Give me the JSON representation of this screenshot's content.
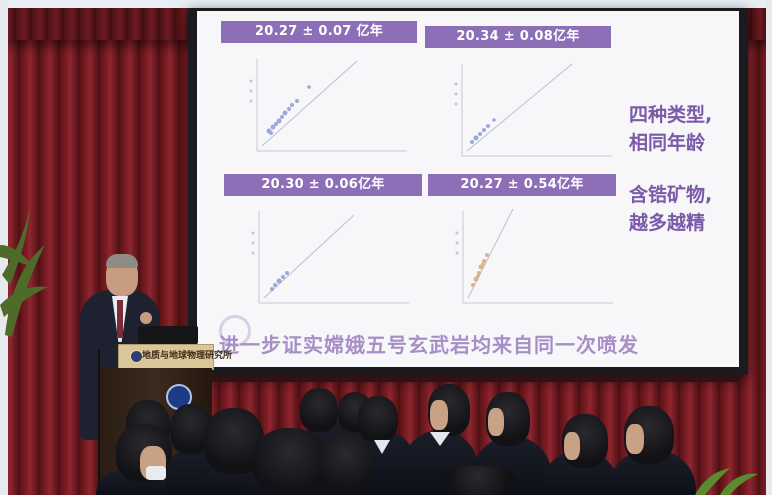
{
  "slide": {
    "labels": [
      "20.27 ± 0.07 亿年",
      "20.34 ± 0.08亿年",
      "20.30 ± 0.06亿年",
      "20.27 ± 0.54亿年"
    ],
    "side_text_1": [
      "四种类型,",
      "相同年龄"
    ],
    "side_text_2": [
      "含锆矿物,",
      "越多越精"
    ],
    "footer": "进一步证实嫦娥五号玄武岩均来自同一次喷发"
  },
  "podium": {
    "sign": "地质与地球物理研究所"
  },
  "colors": {
    "label_purple": "#8d6fb7",
    "text_purple": "#7b5aa8",
    "curtain_red": "#7a1c22"
  }
}
